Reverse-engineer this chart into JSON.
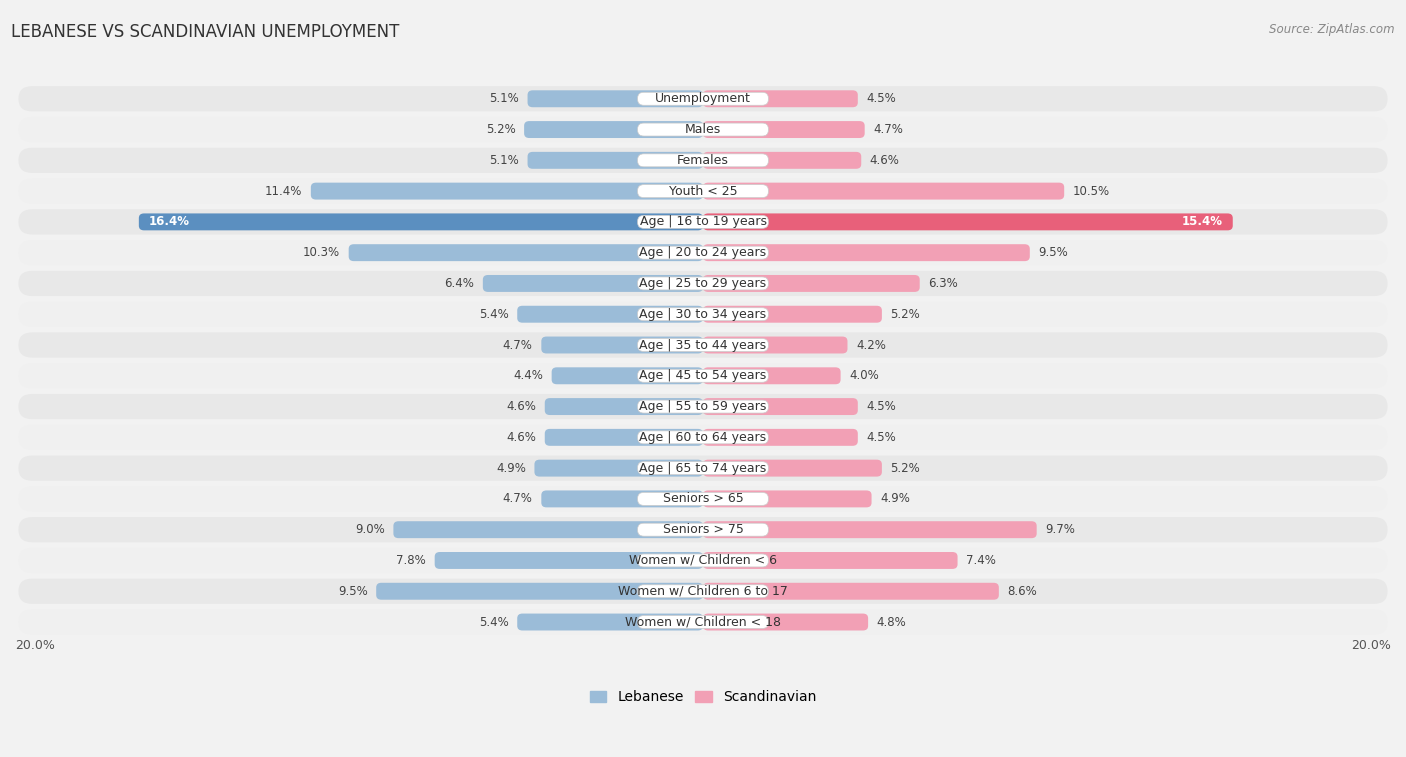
{
  "title": "LEBANESE VS SCANDINAVIAN UNEMPLOYMENT",
  "source": "Source: ZipAtlas.com",
  "categories": [
    "Unemployment",
    "Males",
    "Females",
    "Youth < 25",
    "Age | 16 to 19 years",
    "Age | 20 to 24 years",
    "Age | 25 to 29 years",
    "Age | 30 to 34 years",
    "Age | 35 to 44 years",
    "Age | 45 to 54 years",
    "Age | 55 to 59 years",
    "Age | 60 to 64 years",
    "Age | 65 to 74 years",
    "Seniors > 65",
    "Seniors > 75",
    "Women w/ Children < 6",
    "Women w/ Children 6 to 17",
    "Women w/ Children < 18"
  ],
  "lebanese": [
    5.1,
    5.2,
    5.1,
    11.4,
    16.4,
    10.3,
    6.4,
    5.4,
    4.7,
    4.4,
    4.6,
    4.6,
    4.9,
    4.7,
    9.0,
    7.8,
    9.5,
    5.4
  ],
  "scandinavian": [
    4.5,
    4.7,
    4.6,
    10.5,
    15.4,
    9.5,
    6.3,
    5.2,
    4.2,
    4.0,
    4.5,
    4.5,
    5.2,
    4.9,
    9.7,
    7.4,
    8.6,
    4.8
  ],
  "lebanese_color": "#9bbcd8",
  "scandinavian_color": "#f2a0b5",
  "lebanese_highlight_color": "#5b8fc0",
  "scandinavian_highlight_color": "#e8607a",
  "highlight_indices": [
    4
  ],
  "bg_color": "#f2f2f2",
  "row_color_even": "#e8e8e8",
  "row_color_odd": "#f0f0f0",
  "axis_limit": 20.0,
  "bar_height": 0.55,
  "title_fontsize": 12,
  "category_fontsize": 9,
  "value_fontsize": 8.5,
  "legend_fontsize": 10,
  "axis_label_fontsize": 9
}
